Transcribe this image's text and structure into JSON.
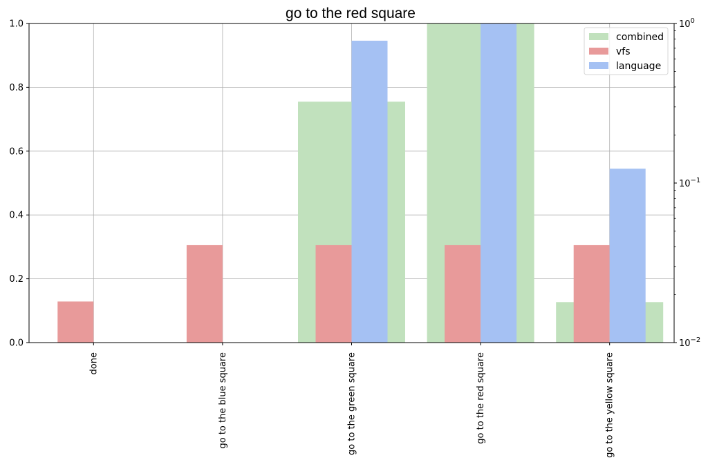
{
  "chart_data": {
    "type": "bar",
    "title": "go to the red square",
    "categories": [
      "done",
      "go to the blue square",
      "go to the green square",
      "go to the red square",
      "go to the yellow square"
    ],
    "series": [
      {
        "name": "combined",
        "axis": "left",
        "values": [
          0.0,
          0.0,
          0.755,
          1.0,
          0.127
        ]
      },
      {
        "name": "vfs",
        "axis": "right",
        "values": [
          0.0181,
          0.0408,
          0.0408,
          0.0408,
          0.0408
        ]
      },
      {
        "name": "language",
        "axis": "right",
        "values": [
          0.0,
          0.0,
          0.78,
          1.0,
          0.123
        ]
      }
    ],
    "ylim": [
      0,
      1
    ],
    "y2lim": [
      0.01,
      1
    ],
    "y2scale": "log",
    "yticks": [
      "0.0",
      "0.2",
      "0.4",
      "0.6",
      "0.8",
      "1.0"
    ],
    "y2ticks": [
      {
        "base": "10",
        "exp": "−2"
      },
      {
        "base": "10",
        "exp": "−1"
      },
      {
        "base": "10",
        "exp": "0"
      }
    ],
    "grid": true,
    "legend_position": "top-right",
    "colors": {
      "combined": "#c1e1bd",
      "vfs": "#e89a9a",
      "language": "#a5c1f3",
      "grid": "#b0b0b0"
    }
  }
}
